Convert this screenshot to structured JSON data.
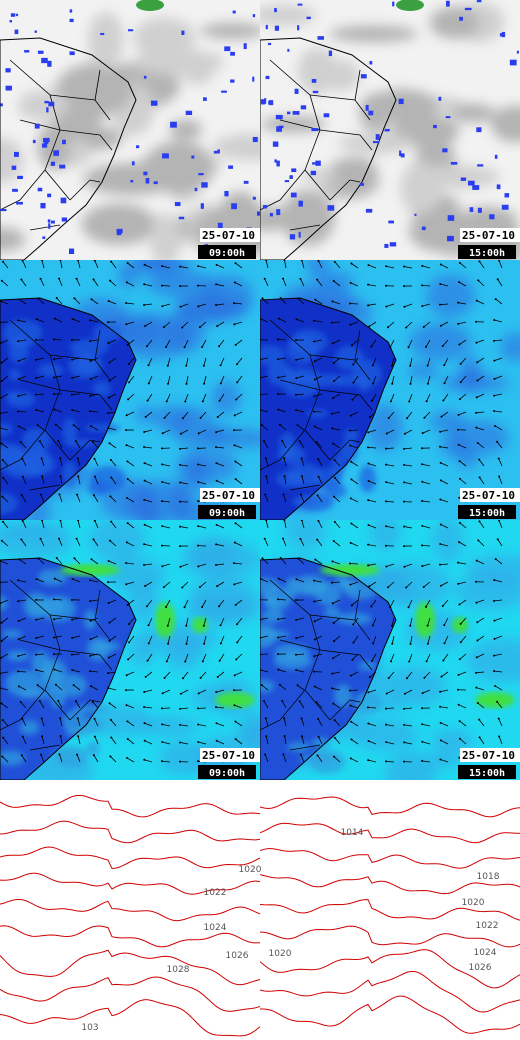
{
  "panels": [
    {
      "date": "25-07-10",
      "time": "09:00h"
    },
    {
      "date": "25-07-10",
      "time": "15:00h"
    },
    {
      "date": "25-07-10",
      "time": "09:00h"
    },
    {
      "date": "25-07-10",
      "time": "15:00h"
    },
    {
      "date": "25-07-10",
      "time": "09:00h"
    },
    {
      "date": "25-07-10",
      "time": "15:00h"
    }
  ],
  "contour_labels": {
    "left": [
      "1020",
      "1022",
      "1024",
      "1026",
      "1028",
      "103"
    ],
    "right": [
      "1014",
      "1018",
      "1020",
      "1022",
      "1024",
      "1026",
      "1020"
    ]
  }
}
